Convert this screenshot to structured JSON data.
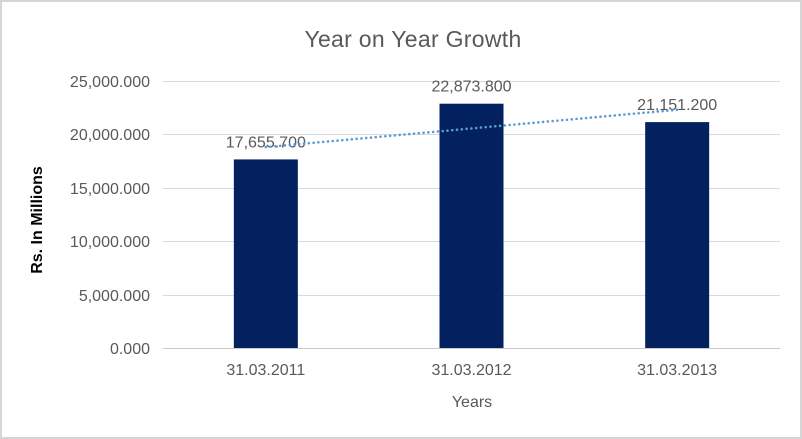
{
  "chart_data": {
    "type": "bar",
    "title": "Year on Year Growth",
    "xlabel": "Years",
    "ylabel": "Rs. In Millions",
    "categories": [
      "31.03.2011",
      "31.03.2012",
      "31.03.2013"
    ],
    "values": [
      17655.7,
      22873.8,
      21151.2
    ],
    "data_labels": [
      "17,655.700",
      "22,873.800",
      "21,151.200"
    ],
    "series": [
      {
        "name": "Rs. In Millions",
        "values": [
          17655.7,
          22873.8,
          21151.2
        ]
      }
    ],
    "y_ticks": [
      {
        "value": 0,
        "label": "0.000"
      },
      {
        "value": 5000,
        "label": "5,000.000"
      },
      {
        "value": 10000,
        "label": "10,000.000"
      },
      {
        "value": 15000,
        "label": "15,000.000"
      },
      {
        "value": 20000,
        "label": "20,000.000"
      },
      {
        "value": 25000,
        "label": "25,000.000"
      }
    ],
    "ylim": [
      0,
      25000
    ],
    "grid": true,
    "legend": "none",
    "trendline": {
      "type": "linear",
      "style": "dotted"
    },
    "colors": {
      "bar": "#02215E",
      "trendline": "#5B9BD5",
      "gridline": "#D9D9D9",
      "axis_line": "#C9C9C9",
      "axis_text": "#595959",
      "title_text": "#595959",
      "y_title_text": "#000000",
      "border": "#D5D5D5",
      "background": "#FFFFFF"
    }
  }
}
